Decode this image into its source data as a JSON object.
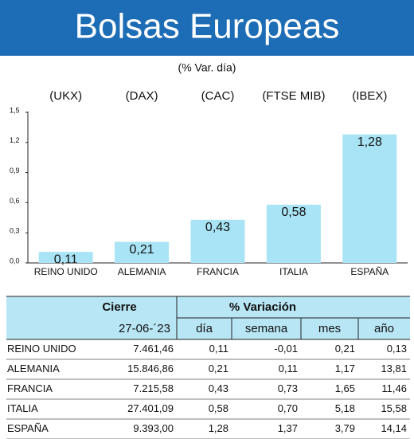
{
  "chart_data": {
    "type": "bar",
    "title": "Bolsas Europeas",
    "subtitle": "(% Var. día)",
    "indices": [
      "(UKX)",
      "(DAX)",
      "(CAC)",
      "(FTSE MIB)",
      "(IBEX)"
    ],
    "categories": [
      "REINO UNIDO",
      "ALEMANIA",
      "FRANCIA",
      "ITALIA",
      "ESPAÑA"
    ],
    "values": [
      0.11,
      0.21,
      0.43,
      0.58,
      1.28
    ],
    "value_labels": [
      "0,11",
      "0,21",
      "0,43",
      "0,58",
      "1,28"
    ],
    "color": "#a8e4f5",
    "ylim": [
      0,
      1.5
    ],
    "yticks": [
      {
        "value": 0,
        "label": "0,0"
      },
      {
        "value": 0.3,
        "label": "0,3"
      },
      {
        "value": 0.6,
        "label": "0,6"
      },
      {
        "value": 0.9,
        "label": "0,9"
      },
      {
        "value": 1.2,
        "label": "1,2"
      },
      {
        "value": 1.5,
        "label": "1,5"
      }
    ],
    "grid": false
  },
  "table": {
    "header": [
      "Cierre",
      "% Variación"
    ],
    "date": "27-06-´23",
    "columns": [
      "día",
      "semana",
      "mes",
      "año"
    ],
    "rows": [
      [
        "REINO UNIDO",
        "7.461,46",
        "0,11",
        "-0,01",
        "0,21",
        "0,13"
      ],
      [
        "ALEMANIA",
        "15.846,86",
        "0,21",
        "0,11",
        "1,17",
        "13,81"
      ],
      [
        "FRANCIA",
        "7.215,58",
        "0,43",
        "0,73",
        "1,65",
        "11,46"
      ],
      [
        "ITALIA",
        "27.401,09",
        "0,58",
        "0,70",
        "5,18",
        "15,58"
      ],
      [
        "ESPAÑA",
        "9.393,00",
        "1,28",
        "1,37",
        "3,79",
        "14,14"
      ]
    ]
  }
}
